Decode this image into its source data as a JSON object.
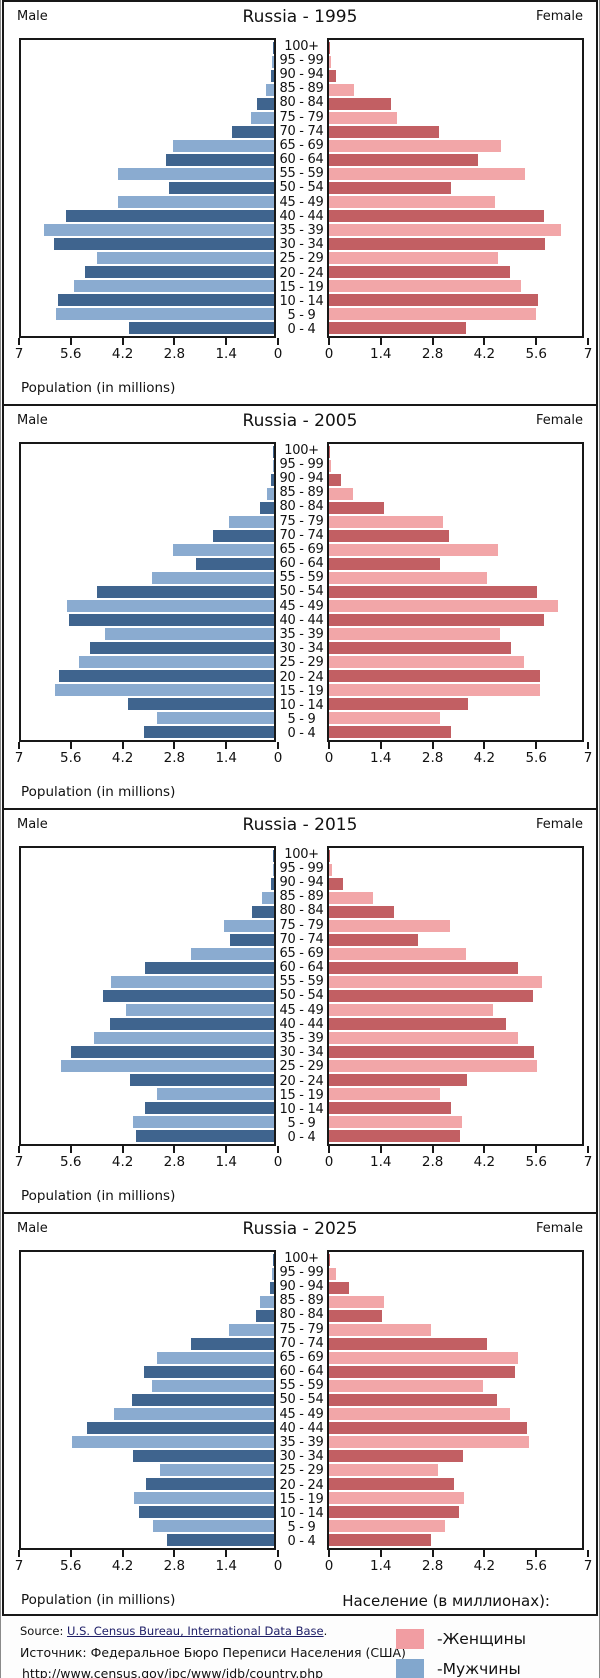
{
  "colors": {
    "male_dark": "#3f648e",
    "male_light": "#8aabd0",
    "female_dark": "#c25f63",
    "female_light": "#f2a6a8",
    "ink": "#181818"
  },
  "chart_data": [
    {
      "type": "bar",
      "subtype": "population-pyramid",
      "title": "Russia - 1995",
      "left_label": "Male",
      "right_label": "Female",
      "xlabel": "Population (in millions)",
      "unit": "millions",
      "xlim": [
        0,
        7
      ],
      "grid": false,
      "left_ticks": [
        "7",
        "5.6",
        "4.2",
        "2.8",
        "1.4",
        "0"
      ],
      "right_ticks": [
        "0",
        "1.4",
        "2.8",
        "4.2",
        "5.6",
        "7"
      ],
      "age_groups": [
        "100+",
        "95 - 99",
        "90 - 94",
        "85 - 89",
        "80 - 84",
        "75 - 79",
        "70 - 74",
        "65 - 69",
        "60 - 64",
        "55 - 59",
        "50 - 54",
        "45 - 49",
        "40 - 44",
        "35 - 39",
        "30 - 34",
        "25 - 29",
        "20 - 24",
        "15 - 19",
        "10 - 14",
        "5 - 9",
        "0 - 4"
      ],
      "male": [
        0.02,
        0.05,
        0.1,
        0.23,
        0.47,
        0.65,
        1.16,
        2.79,
        2.99,
        4.31,
        2.92,
        4.32,
        5.77,
        6.36,
        6.1,
        4.91,
        5.24,
        5.54,
        5.97,
        6.02,
        4.02
      ],
      "female": [
        0.02,
        0.06,
        0.21,
        0.7,
        1.71,
        1.89,
        3.04,
        4.77,
        4.13,
        5.42,
        3.37,
        4.6,
        5.96,
        6.43,
        5.99,
        4.67,
        5.0,
        5.32,
        5.78,
        5.74,
        3.79
      ]
    },
    {
      "type": "bar",
      "subtype": "population-pyramid",
      "title": "Russia - 2005",
      "left_label": "Male",
      "right_label": "Female",
      "xlabel": "Population (in millions)",
      "unit": "millions",
      "xlim": [
        0,
        7
      ],
      "grid": false,
      "left_ticks": [
        "7",
        "5.6",
        "4.2",
        "2.8",
        "1.4",
        "0"
      ],
      "right_ticks": [
        "0",
        "1.4",
        "2.8",
        "4.2",
        "5.6",
        "7"
      ],
      "age_groups": [
        "100+",
        "95 - 99",
        "90 - 94",
        "85 - 89",
        "80 - 84",
        "75 - 79",
        "70 - 74",
        "65 - 69",
        "60 - 64",
        "55 - 59",
        "50 - 54",
        "45 - 49",
        "40 - 44",
        "35 - 39",
        "30 - 34",
        "25 - 29",
        "20 - 24",
        "15 - 19",
        "10 - 14",
        "5 - 9",
        "0 - 4"
      ],
      "male": [
        0.02,
        0.03,
        0.08,
        0.21,
        0.39,
        1.26,
        1.68,
        2.81,
        2.15,
        3.39,
        4.91,
        5.72,
        5.68,
        4.69,
        5.08,
        5.4,
        5.95,
        6.06,
        4.03,
        3.24,
        3.59
      ],
      "female": [
        0.02,
        0.06,
        0.34,
        0.67,
        1.53,
        3.16,
        3.32,
        4.67,
        3.08,
        4.36,
        5.76,
        6.33,
        5.94,
        4.72,
        5.03,
        5.39,
        5.84,
        5.84,
        3.84,
        3.06,
        3.37
      ]
    },
    {
      "type": "bar",
      "subtype": "population-pyramid",
      "title": "Russia - 2015",
      "left_label": "Male",
      "right_label": "Female",
      "xlabel": "Population (in millions)",
      "unit": "millions",
      "xlim": [
        0,
        7
      ],
      "grid": false,
      "left_ticks": [
        "7",
        "5.6",
        "4.2",
        "2.8",
        "1.4",
        "0"
      ],
      "right_ticks": [
        "0",
        "1.4",
        "2.8",
        "4.2",
        "5.6",
        "7"
      ],
      "age_groups": [
        "100+",
        "95 - 99",
        "90 - 94",
        "85 - 89",
        "80 - 84",
        "75 - 79",
        "70 - 74",
        "65 - 69",
        "60 - 64",
        "55 - 59",
        "50 - 54",
        "45 - 49",
        "40 - 44",
        "35 - 39",
        "30 - 34",
        "25 - 29",
        "20 - 24",
        "15 - 19",
        "10 - 14",
        "5 - 9",
        "0 - 4"
      ],
      "male": [
        0.02,
        0.04,
        0.1,
        0.34,
        0.61,
        1.38,
        1.22,
        2.29,
        3.56,
        4.52,
        4.74,
        4.11,
        4.53,
        4.97,
        5.61,
        5.89,
        4.0,
        3.23,
        3.56,
        3.9,
        3.82
      ],
      "female": [
        0.03,
        0.08,
        0.4,
        1.22,
        1.81,
        3.35,
        2.47,
        3.79,
        5.22,
        5.88,
        5.65,
        4.53,
        4.9,
        5.24,
        5.67,
        5.76,
        3.81,
        3.06,
        3.37,
        3.68,
        3.63
      ]
    },
    {
      "type": "bar",
      "subtype": "population-pyramid",
      "title": "Russia - 2025",
      "left_label": "Male",
      "right_label": "Female",
      "xlabel": "Population (in millions)",
      "unit": "millions",
      "xlim": [
        0,
        7
      ],
      "grid": false,
      "left_ticks": [
        "7",
        "5.6",
        "4.2",
        "2.8",
        "1.4",
        "0"
      ],
      "right_ticks": [
        "0",
        "1.4",
        "2.8",
        "4.2",
        "5.6",
        "7"
      ],
      "age_groups": [
        "100+",
        "95 - 99",
        "90 - 94",
        "85 - 89",
        "80 - 84",
        "75 - 79",
        "70 - 74",
        "65 - 69",
        "60 - 64",
        "55 - 59",
        "50 - 54",
        "45 - 49",
        "40 - 44",
        "35 - 39",
        "30 - 34",
        "25 - 29",
        "20 - 24",
        "15 - 19",
        "10 - 14",
        "5 - 9",
        "0 - 4"
      ],
      "male": [
        0.02,
        0.07,
        0.12,
        0.39,
        0.51,
        1.25,
        2.29,
        3.23,
        3.61,
        3.39,
        3.93,
        4.42,
        5.18,
        5.59,
        3.9,
        3.17,
        3.54,
        3.88,
        3.75,
        3.35,
        2.96
      ],
      "female": [
        0.03,
        0.21,
        0.55,
        1.53,
        1.48,
        2.83,
        4.36,
        5.24,
        5.16,
        4.25,
        4.65,
        5.0,
        5.47,
        5.53,
        3.71,
        3.01,
        3.45,
        3.75,
        3.6,
        3.22,
        2.82
      ]
    }
  ],
  "legend_title_ru": "Население (в миллионах):",
  "footer": {
    "source_prefix": "Source: ",
    "source_link": "U.S. Census Bureau, International Data Base",
    "source_suffix": ".",
    "source_ru": "Источник: Федеральное Бюро Переписи Населения (США)",
    "url": "http://www.census.gov/ipc/www/idb/country.php",
    "legend": [
      {
        "label": "-Женщины",
        "color": "#f19da2"
      },
      {
        "label": "-Мужчины",
        "color": "#82a7cd"
      }
    ]
  }
}
